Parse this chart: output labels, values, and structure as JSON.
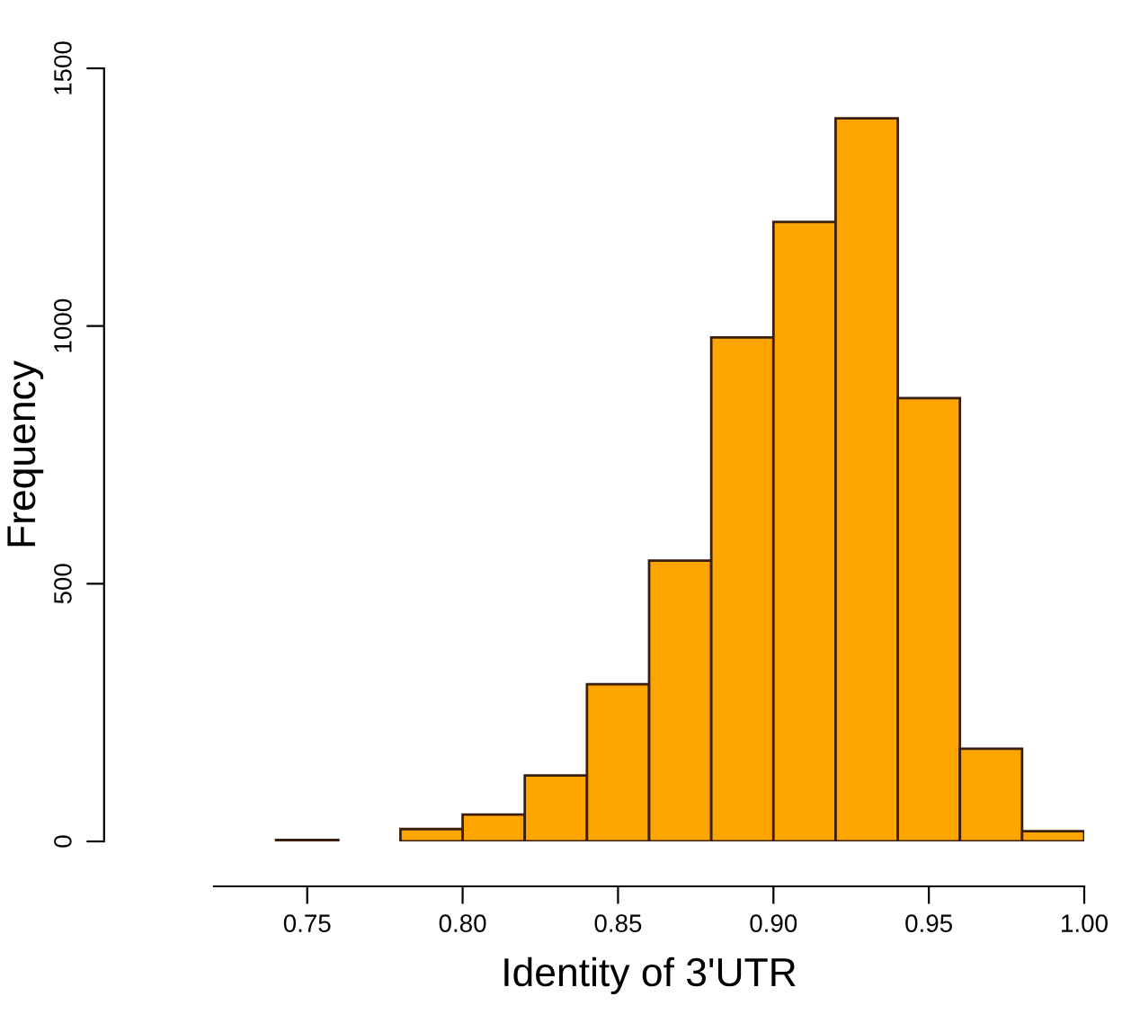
{
  "chart_data": {
    "type": "histogram",
    "xlabel": "Identity of 3'UTR",
    "ylabel": "Frequency",
    "bins": [
      0.72,
      0.74,
      0.76,
      0.78,
      0.8,
      0.82,
      0.84,
      0.86,
      0.88,
      0.9,
      0.92,
      0.94,
      0.96,
      0.98,
      1.0
    ],
    "values": [
      0,
      3,
      0,
      24,
      52,
      128,
      305,
      545,
      978,
      1202,
      1403,
      860,
      180,
      20
    ],
    "color": "#ffa500",
    "xlim": [
      0.72,
      1.0
    ],
    "ylim": [
      0,
      1500
    ],
    "xticks": [
      {
        "value": 0.75,
        "label": "0.75"
      },
      {
        "value": 0.8,
        "label": "0.80"
      },
      {
        "value": 0.85,
        "label": "0.85"
      },
      {
        "value": 0.9,
        "label": "0.90"
      },
      {
        "value": 0.95,
        "label": "0.95"
      },
      {
        "value": 1.0,
        "label": "1.00"
      }
    ],
    "yticks": [
      0,
      500,
      1000,
      1500
    ],
    "grid": false
  }
}
